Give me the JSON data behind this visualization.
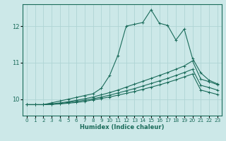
{
  "xlabel": "Humidex (Indice chaleur)",
  "ylabel": "",
  "bg_color": "#cce8e8",
  "line_color": "#1a6b5a",
  "grid_color": "#afd4d4",
  "x_ticks": [
    0,
    1,
    2,
    3,
    4,
    5,
    6,
    7,
    8,
    9,
    10,
    11,
    12,
    13,
    14,
    15,
    16,
    17,
    18,
    19,
    20,
    21,
    22,
    23
  ],
  "y_ticks": [
    10,
    11,
    12
  ],
  "ylim": [
    9.55,
    12.6
  ],
  "xlim": [
    -0.5,
    23.5
  ],
  "series": [
    {
      "x": [
        0,
        1,
        2,
        3,
        4,
        5,
        6,
        7,
        8,
        9,
        10,
        11,
        12,
        13,
        14,
        15,
        16,
        17,
        18,
        19,
        20,
        21,
        22,
        23
      ],
      "y": [
        9.85,
        9.85,
        9.85,
        9.9,
        9.95,
        10.0,
        10.05,
        10.1,
        10.15,
        10.3,
        10.65,
        11.2,
        12.0,
        12.05,
        12.1,
        12.45,
        12.08,
        12.02,
        11.62,
        11.92,
        11.12,
        10.72,
        10.52,
        10.42
      ]
    },
    {
      "x": [
        0,
        1,
        2,
        3,
        4,
        5,
        6,
        7,
        8,
        9,
        10,
        11,
        12,
        13,
        14,
        15,
        16,
        17,
        18,
        19,
        20,
        21,
        22,
        23
      ],
      "y": [
        9.85,
        9.85,
        9.85,
        9.87,
        9.9,
        9.93,
        9.97,
        10.01,
        10.06,
        10.12,
        10.18,
        10.25,
        10.33,
        10.41,
        10.49,
        10.57,
        10.65,
        10.73,
        10.82,
        10.91,
        11.05,
        10.55,
        10.48,
        10.4
      ]
    },
    {
      "x": [
        0,
        1,
        2,
        3,
        4,
        5,
        6,
        7,
        8,
        9,
        10,
        11,
        12,
        13,
        14,
        15,
        16,
        17,
        18,
        19,
        20,
        21,
        22,
        23
      ],
      "y": [
        9.85,
        9.85,
        9.85,
        9.86,
        9.88,
        9.91,
        9.94,
        9.97,
        10.01,
        10.06,
        10.11,
        10.17,
        10.23,
        10.29,
        10.36,
        10.43,
        10.5,
        10.57,
        10.65,
        10.73,
        10.82,
        10.38,
        10.32,
        10.25
      ]
    },
    {
      "x": [
        0,
        1,
        2,
        3,
        4,
        5,
        6,
        7,
        8,
        9,
        10,
        11,
        12,
        13,
        14,
        15,
        16,
        17,
        18,
        19,
        20,
        21,
        22,
        23
      ],
      "y": [
        9.85,
        9.85,
        9.85,
        9.86,
        9.87,
        9.89,
        9.91,
        9.94,
        9.98,
        10.02,
        10.06,
        10.11,
        10.16,
        10.21,
        10.27,
        10.33,
        10.39,
        10.46,
        10.53,
        10.61,
        10.69,
        10.25,
        10.19,
        10.13
      ]
    }
  ]
}
